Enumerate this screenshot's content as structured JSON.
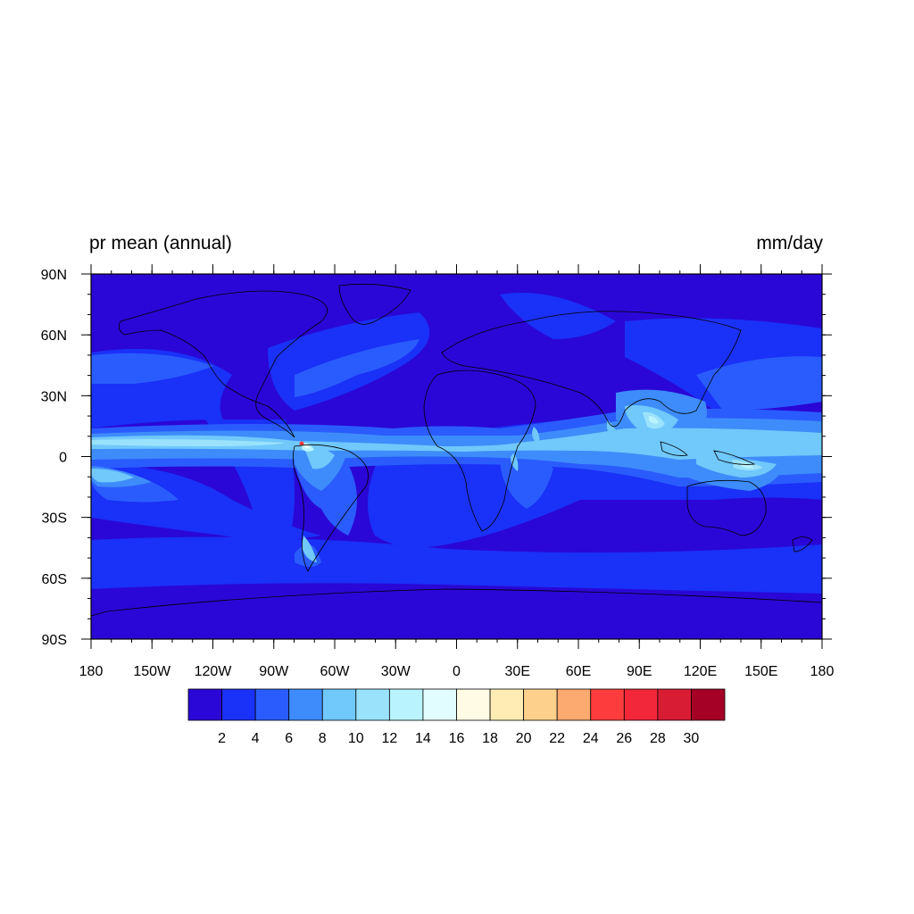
{
  "figure": {
    "left_title": "pr mean (annual)",
    "right_title": "mm/day"
  },
  "map": {
    "projection": "cylindrical equidistant",
    "lon_range": [
      -180,
      180
    ],
    "lat_range": [
      -90,
      90
    ],
    "lat_ticks": [
      {
        "value": 90,
        "label": "90N"
      },
      {
        "value": 60,
        "label": "60N"
      },
      {
        "value": 30,
        "label": "30N"
      },
      {
        "value": 0,
        "label": "0"
      },
      {
        "value": -30,
        "label": "30S"
      },
      {
        "value": -60,
        "label": "60S"
      },
      {
        "value": -90,
        "label": "90S"
      }
    ],
    "lon_ticks": [
      {
        "value": -180,
        "label": "180"
      },
      {
        "value": -150,
        "label": "150W"
      },
      {
        "value": -120,
        "label": "120W"
      },
      {
        "value": -90,
        "label": "90W"
      },
      {
        "value": -60,
        "label": "60W"
      },
      {
        "value": -30,
        "label": "30W"
      },
      {
        "value": 0,
        "label": "0"
      },
      {
        "value": 30,
        "label": "30E"
      },
      {
        "value": 60,
        "label": "60E"
      },
      {
        "value": 90,
        "label": "90E"
      },
      {
        "value": 120,
        "label": "120E"
      },
      {
        "value": 150,
        "label": "150E"
      },
      {
        "value": 180,
        "label": "180"
      }
    ]
  },
  "colorbar": {
    "levels": [
      "2",
      "4",
      "6",
      "8",
      "10",
      "12",
      "14",
      "16",
      "18",
      "20",
      "22",
      "24",
      "26",
      "28",
      "30"
    ],
    "colors": [
      "#2a07d6",
      "#1a31f7",
      "#2a5cfd",
      "#3e8cfb",
      "#70c8fb",
      "#9ae2fc",
      "#b9f3fd",
      "#e2fdff",
      "#fffbe4",
      "#feecb4",
      "#fdd08c",
      "#fcaa70",
      "#fd3d3d",
      "#f3273a",
      "#d81c34",
      "#a50026"
    ]
  }
}
